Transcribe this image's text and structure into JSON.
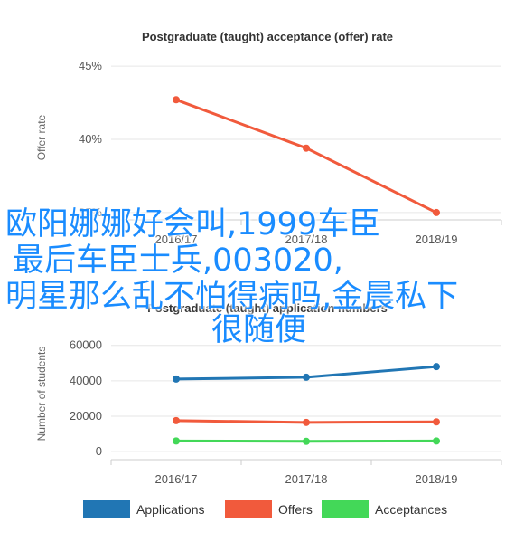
{
  "chart_data": [
    {
      "type": "line",
      "title": "Postgraduate (taught) acceptance (offer) rate",
      "ylabel": "Offer rate",
      "xlabel": "",
      "categories": [
        "2016/17",
        "2017/18",
        "2018/19"
      ],
      "y_ticks": [
        "35%",
        "40%",
        "45%"
      ],
      "ylim": [
        34.5,
        45.5
      ],
      "grid": true,
      "series": [
        {
          "values": [
            42.7,
            39.4,
            35.0
          ],
          "color": "#f15a3c"
        }
      ]
    },
    {
      "type": "line",
      "title": "Postgraduate (taught) application numbers",
      "ylabel": "Number of students",
      "xlabel": "",
      "categories": [
        "2016/17",
        "2017/18",
        "2018/19"
      ],
      "y_ticks": [
        "0",
        "20000",
        "40000",
        "60000"
      ],
      "ylim": [
        -3000,
        67000
      ],
      "grid": true,
      "legend_position": "bottom",
      "series": [
        {
          "name": "Applications",
          "values": [
            41000,
            42000,
            48000
          ],
          "color": "#2176b4"
        },
        {
          "name": "Offers",
          "values": [
            17500,
            16500,
            16800
          ],
          "color": "#f15a3c"
        },
        {
          "name": "Acceptances",
          "values": [
            6000,
            5800,
            6000
          ],
          "color": "#43d858"
        }
      ]
    }
  ],
  "overlay": {
    "line1": "欧阳娜娜好会叫,1999车臣",
    "line2": "最后车臣士兵,003020,",
    "line3": "明星那么乱不怕得病吗,金晨私下",
    "line4": "很随便"
  }
}
